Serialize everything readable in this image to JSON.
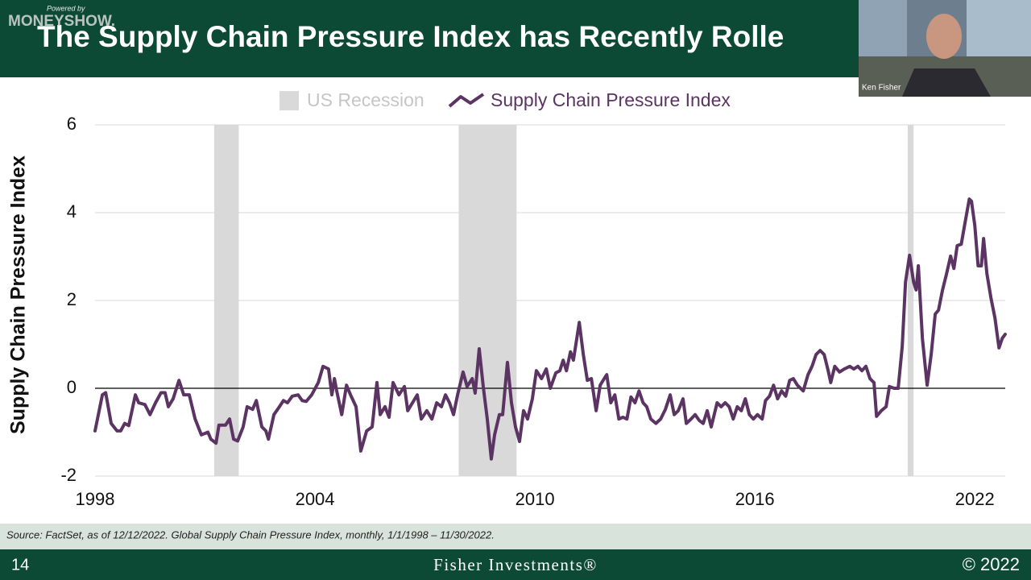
{
  "slide": {
    "logo_tagline": "Powered by",
    "logo": "MONEYSHOW.",
    "title": "The Supply Chain Pressure Index has Recently Rolle",
    "presenter": "Ken Fisher",
    "source": "Source: FactSet, as of 12/12/2022. Global Supply Chain Pressure Index, monthly, 1/1/1998 – 11/30/2022.",
    "page_number": "14",
    "brand": "Fisher Investments®",
    "copyright": "© 2022"
  },
  "chart_data": {
    "type": "line",
    "y_label": "Supply Chain Pressure Index",
    "x": [
      1998.0,
      1998.2,
      1998.29,
      1998.44,
      1998.6,
      1998.7,
      1998.81,
      1998.92,
      1999.1,
      1999.19,
      1999.36,
      1999.5,
      1999.65,
      1999.8,
      1999.91,
      2000.0,
      2000.13,
      2000.29,
      2000.42,
      2000.57,
      2000.73,
      2000.9,
      2001.08,
      2001.16,
      2001.3,
      2001.38,
      2001.56,
      2001.67,
      2001.78,
      2001.89,
      2002.04,
      2002.15,
      2002.3,
      2002.4,
      2002.55,
      2002.66,
      2002.73,
      2002.88,
      2003.03,
      2003.14,
      2003.25,
      2003.38,
      2003.54,
      2003.65,
      2003.76,
      2003.91,
      2004.09,
      2004.22,
      2004.37,
      2004.46,
      2004.53,
      2004.59,
      2004.73,
      2004.86,
      2004.97,
      2005.12,
      2005.25,
      2005.41,
      2005.56,
      2005.69,
      2005.78,
      2005.91,
      2006.02,
      2006.13,
      2006.29,
      2006.44,
      2006.53,
      2006.66,
      2006.79,
      2006.9,
      2007.05,
      2007.19,
      2007.32,
      2007.45,
      2007.56,
      2007.67,
      2007.78,
      2007.89,
      2008.04,
      2008.15,
      2008.29,
      2008.37,
      2008.48,
      2008.59,
      2008.7,
      2008.81,
      2008.9,
      2009.03,
      2009.12,
      2009.25,
      2009.36,
      2009.47,
      2009.58,
      2009.69,
      2009.8,
      2009.93,
      2010.04,
      2010.18,
      2010.31,
      2010.42,
      2010.57,
      2010.68,
      2010.77,
      2010.86,
      2010.97,
      2011.05,
      2011.21,
      2011.32,
      2011.43,
      2011.54,
      2011.67,
      2011.78,
      2011.89,
      2011.96,
      2012.07,
      2012.18,
      2012.29,
      2012.4,
      2012.51,
      2012.62,
      2012.73,
      2012.84,
      2012.95,
      2013.05,
      2013.16,
      2013.3,
      2013.43,
      2013.56,
      2013.69,
      2013.8,
      2013.91,
      2014.04,
      2014.13,
      2014.26,
      2014.37,
      2014.48,
      2014.59,
      2014.7,
      2014.81,
      2014.97,
      2015.08,
      2015.19,
      2015.3,
      2015.41,
      2015.52,
      2015.63,
      2015.74,
      2015.85,
      2015.96,
      2016.07,
      2016.2,
      2016.29,
      2016.4,
      2016.51,
      2016.62,
      2016.73,
      2016.84,
      2016.95,
      2017.05,
      2017.16,
      2017.32,
      2017.45,
      2017.56,
      2017.67,
      2017.78,
      2017.89,
      2018.0,
      2018.07,
      2018.18,
      2018.31,
      2018.44,
      2018.59,
      2018.7,
      2018.81,
      2018.92,
      2019.03,
      2019.14,
      2019.25,
      2019.32,
      2019.45,
      2019.58,
      2019.67,
      2019.8,
      2019.91,
      2020.02,
      2020.11,
      2020.22,
      2020.33,
      2020.4,
      2020.46,
      2020.57,
      2020.7,
      2020.81,
      2020.92,
      2021.01,
      2021.12,
      2021.23,
      2021.34,
      2021.43,
      2021.52,
      2021.63,
      2021.74,
      2021.85,
      2021.91,
      2022.0,
      2022.09,
      2022.18,
      2022.24,
      2022.33,
      2022.44,
      2022.55,
      2022.66,
      2022.75,
      2022.83
    ],
    "series": [
      {
        "name": "Supply Chain Pressure Index",
        "color": "#5b3463",
        "values": [
          -0.97,
          -0.15,
          -0.1,
          -0.8,
          -0.97,
          -0.97,
          -0.8,
          -0.85,
          -0.15,
          -0.33,
          -0.37,
          -0.6,
          -0.33,
          -0.1,
          -0.1,
          -0.42,
          -0.24,
          0.18,
          -0.15,
          -0.15,
          -0.7,
          -1.06,
          -1.0,
          -1.16,
          -1.25,
          -0.84,
          -0.84,
          -0.7,
          -1.16,
          -1.2,
          -0.88,
          -0.42,
          -0.48,
          -0.28,
          -0.88,
          -0.97,
          -1.16,
          -0.6,
          -0.42,
          -0.28,
          -0.33,
          -0.18,
          -0.15,
          -0.28,
          -0.3,
          -0.15,
          0.13,
          0.5,
          0.44,
          -0.15,
          0.22,
          -0.05,
          -0.6,
          0.07,
          -0.15,
          -0.42,
          -1.43,
          -0.97,
          -0.88,
          0.13,
          -0.6,
          -0.42,
          -0.66,
          0.13,
          -0.15,
          0.04,
          -0.51,
          -0.33,
          -0.15,
          -0.7,
          -0.51,
          -0.7,
          -0.33,
          -0.42,
          -0.15,
          -0.33,
          -0.6,
          -0.15,
          0.37,
          0.04,
          0.22,
          -0.11,
          0.9,
          0.04,
          -0.7,
          -1.61,
          -1.06,
          -0.6,
          -0.6,
          0.59,
          -0.33,
          -0.88,
          -1.21,
          -0.51,
          -0.7,
          -0.24,
          0.4,
          0.22,
          0.44,
          0.0,
          0.35,
          0.4,
          0.64,
          0.4,
          0.83,
          0.64,
          1.5,
          0.77,
          0.18,
          0.22,
          -0.51,
          0.07,
          0.22,
          0.31,
          -0.33,
          -0.15,
          -0.7,
          -0.66,
          -0.7,
          -0.2,
          -0.33,
          -0.06,
          -0.33,
          -0.42,
          -0.7,
          -0.8,
          -0.7,
          -0.48,
          -0.15,
          -0.6,
          -0.51,
          -0.24,
          -0.8,
          -0.7,
          -0.6,
          -0.73,
          -0.8,
          -0.51,
          -0.88,
          -0.33,
          -0.42,
          -0.33,
          -0.42,
          -0.7,
          -0.42,
          -0.51,
          -0.24,
          -0.6,
          -0.7,
          -0.6,
          -0.7,
          -0.28,
          -0.18,
          0.07,
          -0.24,
          -0.06,
          -0.18,
          0.18,
          0.22,
          0.07,
          -0.06,
          0.31,
          0.5,
          0.77,
          0.86,
          0.77,
          0.4,
          0.13,
          0.5,
          0.37,
          0.44,
          0.5,
          0.44,
          0.5,
          0.4,
          0.5,
          0.22,
          0.13,
          -0.64,
          -0.51,
          -0.42,
          0.04,
          0.0,
          0.0,
          0.95,
          2.42,
          3.03,
          2.42,
          2.24,
          2.79,
          1.14,
          0.07,
          0.77,
          1.69,
          1.78,
          2.24,
          2.61,
          3.01,
          2.73,
          3.25,
          3.28,
          3.8,
          4.31,
          4.26,
          3.71,
          2.79,
          2.79,
          3.41,
          2.61,
          2.06,
          1.6,
          0.92,
          1.14,
          1.23
        ]
      }
    ],
    "recessions": {
      "name": "US Recession",
      "color": "#d9d9d9",
      "ranges": [
        [
          2001.25,
          2001.92
        ],
        [
          2007.92,
          2009.5
        ],
        [
          2020.17,
          2020.33
        ]
      ]
    },
    "xlim": [
      1998,
      2022.83
    ],
    "xticks": [
      1998,
      2004,
      2010,
      2016,
      2022
    ],
    "ylim": [
      -2,
      6
    ],
    "yticks": [
      -2,
      0,
      2,
      4,
      6
    ],
    "grid": true,
    "zero_line": true,
    "legend": "top"
  }
}
